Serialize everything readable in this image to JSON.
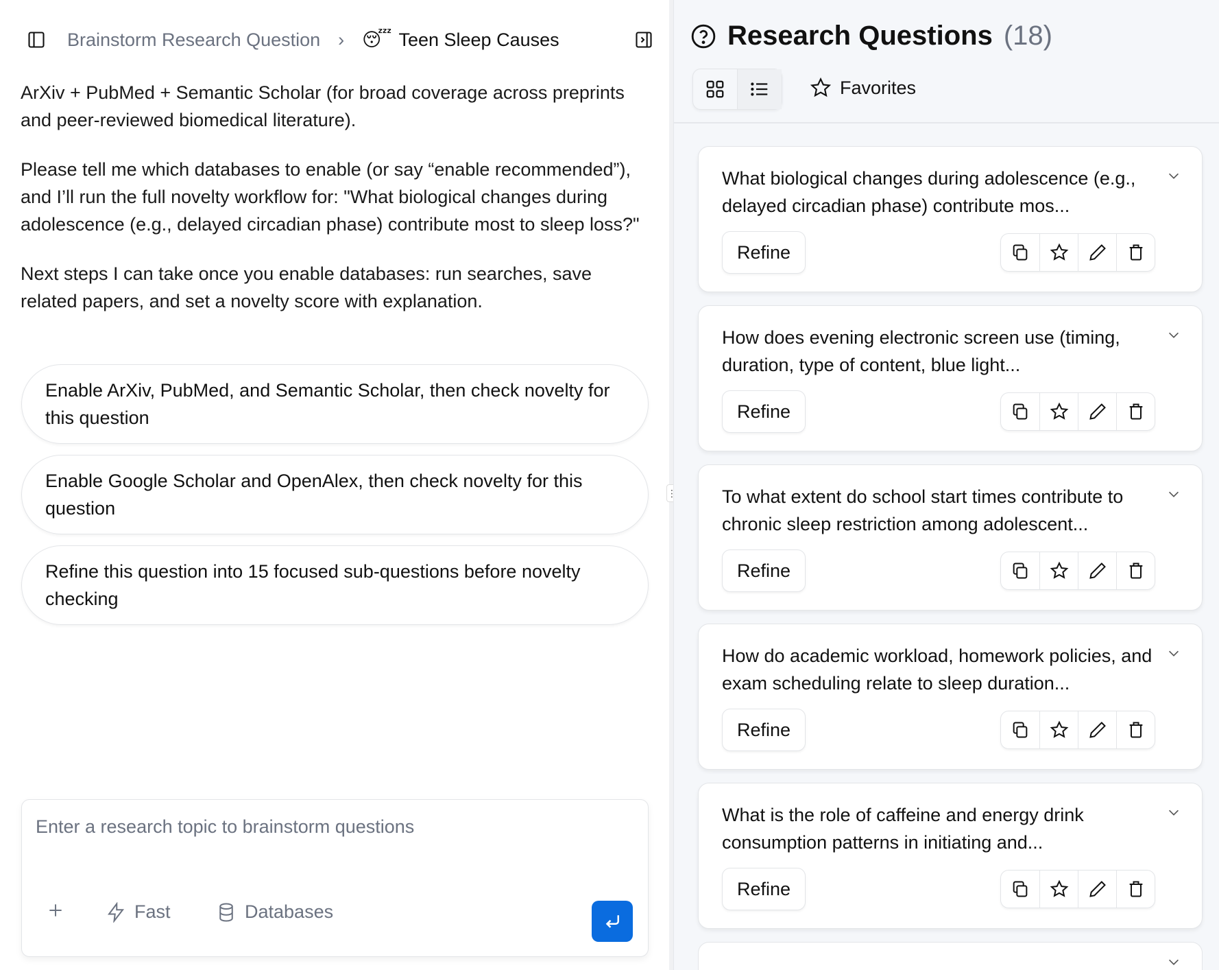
{
  "header": {
    "breadcrumb_parent": "Brainstorm Research Question",
    "breadcrumb_current": "Teen Sleep Causes",
    "emoji": "😴"
  },
  "chat": {
    "paragraphs": [
      "ArXiv + PubMed + Semantic Scholar (for broad coverage across preprints and peer-reviewed biomedical literature).",
      "Please tell me which databases to enable (or say “enable recommended”), and I’ll run the full novelty workflow for: \"What biological changes during adolescence (e.g., delayed circadian phase) contribute most to sleep loss?\"",
      "Next steps I can take once you enable databases: run searches, save related papers, and set a novelty score with explanation."
    ],
    "suggestions": [
      "Enable ArXiv, PubMed, and Semantic Scholar, then check novelty for this question",
      "Enable Google Scholar and OpenAlex, then check novelty for this question",
      "Refine this question into 15 focused sub-questions before novelty checking"
    ]
  },
  "composer": {
    "placeholder": "Enter a research topic to brainstorm questions",
    "fast_label": "Fast",
    "databases_label": "Databases",
    "send_color": "#0a6cdf"
  },
  "panel": {
    "title": "Research Questions",
    "count": "(18)",
    "favorites_label": "Favorites",
    "refine_label": "Refine",
    "questions": [
      "What biological changes during adolescence (e.g., delayed circadian phase) contribute mos...",
      "How does evening electronic screen use (timing, duration, type of content, blue light...",
      "To what extent do school start times contribute to chronic sleep restriction among adolescent...",
      "How do academic workload, homework policies, and exam scheduling relate to sleep duration...",
      "What is the role of caffeine and energy drink consumption patterns in initiating and..."
    ]
  }
}
